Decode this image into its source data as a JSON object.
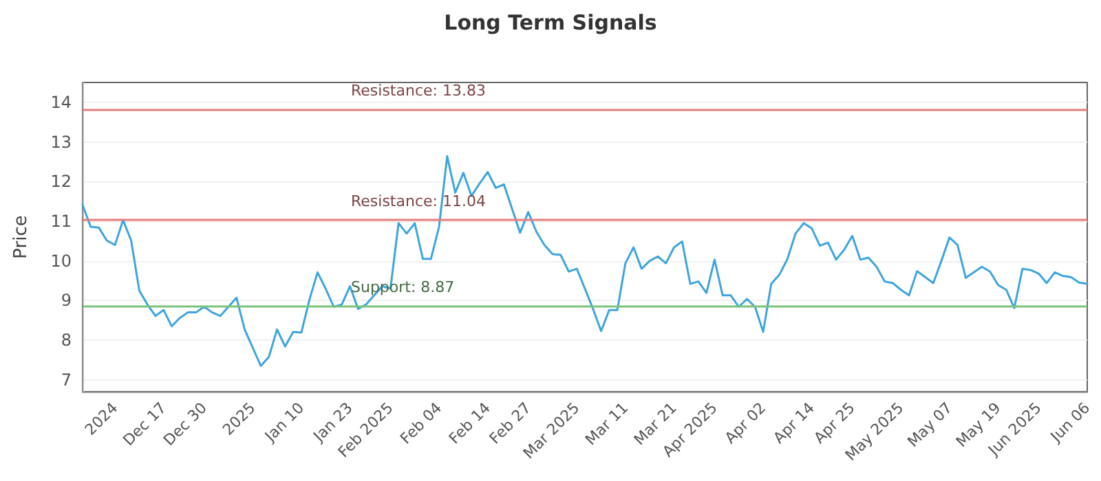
{
  "chart_data": {
    "type": "line",
    "title": "Long Term Signals",
    "ylabel": "Price",
    "categories": [
      null,
      null,
      null,
      null,
      "2024",
      null,
      null,
      null,
      null,
      null,
      "Dec 17",
      null,
      null,
      null,
      null,
      "Dec 30",
      null,
      null,
      null,
      null,
      null,
      "2025",
      null,
      null,
      null,
      null,
      null,
      "Jan 10",
      null,
      null,
      null,
      null,
      null,
      "Jan 23",
      null,
      null,
      null,
      null,
      "Feb 2025",
      null,
      null,
      null,
      null,
      null,
      "Feb 04",
      null,
      null,
      null,
      null,
      null,
      "Feb 14",
      null,
      null,
      null,
      null,
      "Feb 27",
      null,
      null,
      null,
      null,
      null,
      "Mar 2025",
      null,
      null,
      null,
      null,
      null,
      "Mar 11",
      null,
      null,
      null,
      null,
      null,
      "Mar 21",
      null,
      null,
      null,
      null,
      "Apr 2025",
      null,
      null,
      null,
      null,
      null,
      "Apr 02",
      null,
      null,
      null,
      null,
      null,
      "Apr 14",
      null,
      null,
      null,
      null,
      "Apr 25",
      null,
      null,
      null,
      null,
      null,
      "May 2025",
      null,
      null,
      null,
      null,
      null,
      "May 07",
      null,
      null,
      null,
      null,
      null,
      "May 19",
      null,
      null,
      null,
      null,
      "Jun 2025",
      null,
      null,
      null,
      null,
      null,
      "Jun 06"
    ],
    "series": [
      {
        "color": "#3ea5de",
        "values": [
          11.41,
          10.86,
          10.84,
          10.51,
          10.4,
          11.03,
          10.51,
          9.25,
          8.9,
          8.61,
          8.76,
          8.35,
          8.56,
          8.7,
          8.7,
          8.84,
          8.7,
          8.61,
          8.84,
          9.07,
          8.27,
          7.81,
          7.35,
          7.58,
          8.27,
          7.84,
          8.21,
          8.19,
          9.02,
          9.71,
          9.3,
          8.84,
          8.9,
          9.36,
          8.79,
          8.9,
          9.13,
          9.36,
          9.3,
          10.95,
          10.69,
          10.95,
          10.05,
          10.05,
          10.86,
          12.64,
          11.72,
          12.22,
          11.64,
          11.95,
          12.24,
          11.84,
          11.93,
          11.32,
          10.71,
          11.23,
          10.74,
          10.4,
          10.17,
          10.15,
          9.73,
          9.8,
          9.3,
          8.79,
          8.23,
          8.76,
          8.76,
          9.94,
          10.34,
          9.8,
          10.0,
          10.11,
          9.94,
          10.34,
          10.49,
          9.42,
          9.48,
          9.19,
          10.03,
          9.13,
          9.13,
          8.84,
          9.04,
          8.84,
          8.21,
          9.42,
          9.65,
          10.05,
          10.69,
          10.95,
          10.82,
          10.38,
          10.46,
          10.03,
          10.28,
          10.63,
          10.03,
          10.08,
          9.85,
          9.48,
          9.44,
          9.27,
          9.13,
          9.74,
          9.59,
          9.44,
          10.0,
          10.59,
          10.4,
          9.57,
          9.71,
          9.85,
          9.73,
          9.39,
          9.27,
          8.81,
          9.8,
          9.77,
          9.68,
          9.44,
          9.71,
          9.62,
          9.59,
          9.45,
          9.42
        ]
      }
    ],
    "ylim": [
      6.7,
      14.5
    ],
    "yticks": [
      7,
      8,
      9,
      10,
      11,
      12,
      13,
      14
    ],
    "grid": "y",
    "marker": "none",
    "line_style": "solid",
    "ref_lines": [
      {
        "axis": "y",
        "value": 13.83,
        "label": "Resistance: 13.83",
        "color": "#e57c7c"
      },
      {
        "axis": "y",
        "value": 11.04,
        "label": "Resistance: 11.04",
        "color": "#e57c7c"
      },
      {
        "axis": "y",
        "value": 8.87,
        "label": "Support: 8.87",
        "color": "#7cc47c"
      }
    ]
  }
}
